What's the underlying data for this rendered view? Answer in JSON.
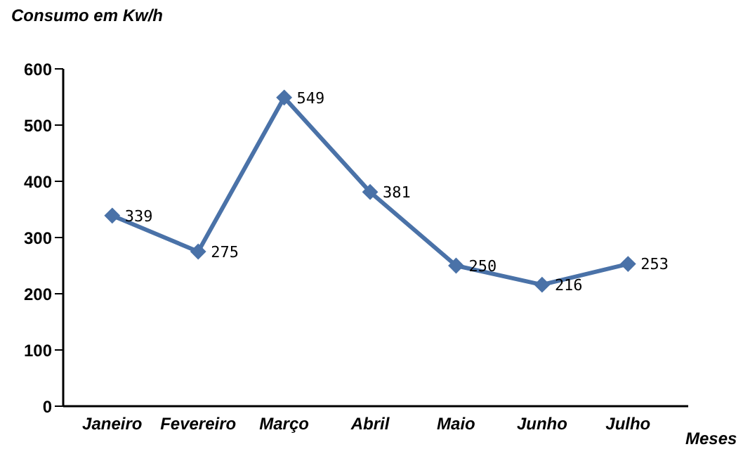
{
  "chart_data": {
    "type": "line",
    "ylabel": "Consumo em Kw/h",
    "xlabel": "Meses",
    "categories": [
      "Janeiro",
      "Fevereiro",
      "Março",
      "Abril",
      "Maio",
      "Junho",
      "Julho"
    ],
    "series": [
      {
        "color": "#4a72a8",
        "values": [
          339,
          275,
          549,
          381,
          250,
          216,
          253
        ]
      }
    ],
    "ylim": [
      0,
      600
    ],
    "yticks": [
      0,
      100,
      200,
      300,
      400,
      500,
      600
    ],
    "grid": false,
    "legend": false,
    "marker": "diamond",
    "line_style": "solid",
    "data_labels": true
  }
}
